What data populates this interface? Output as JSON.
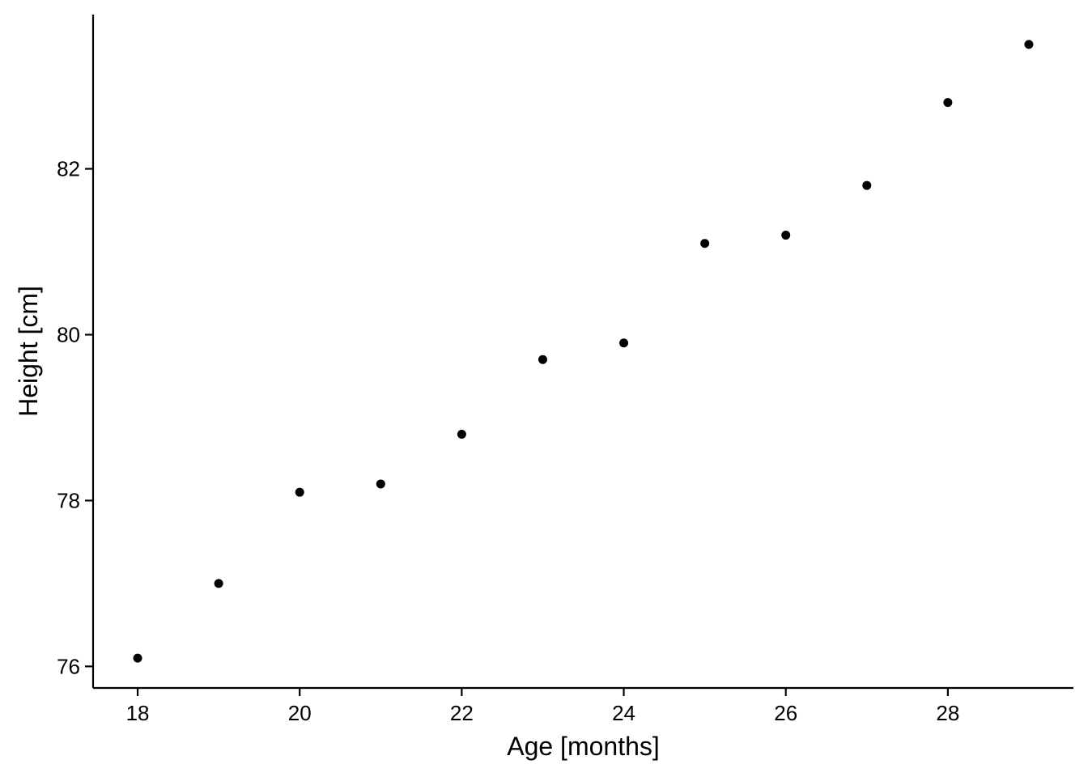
{
  "chart_data": {
    "type": "scatter",
    "title": "",
    "xlabel": "Age [months]",
    "ylabel": "Height [cm]",
    "xlim": [
      17.45,
      29.55
    ],
    "ylim": [
      75.74,
      83.86
    ],
    "x_ticks": [
      18,
      20,
      22,
      24,
      26,
      28
    ],
    "y_ticks": [
      76,
      78,
      80,
      82
    ],
    "grid": false,
    "legend": "none",
    "point_color": "#000000",
    "series": [
      {
        "x": [
          18,
          19,
          20,
          21,
          22,
          23,
          24,
          25,
          26,
          27,
          28,
          29
        ],
        "y": [
          76.1,
          77.0,
          78.1,
          78.2,
          78.8,
          79.7,
          79.9,
          81.1,
          81.2,
          81.8,
          82.8,
          83.5
        ]
      }
    ]
  }
}
